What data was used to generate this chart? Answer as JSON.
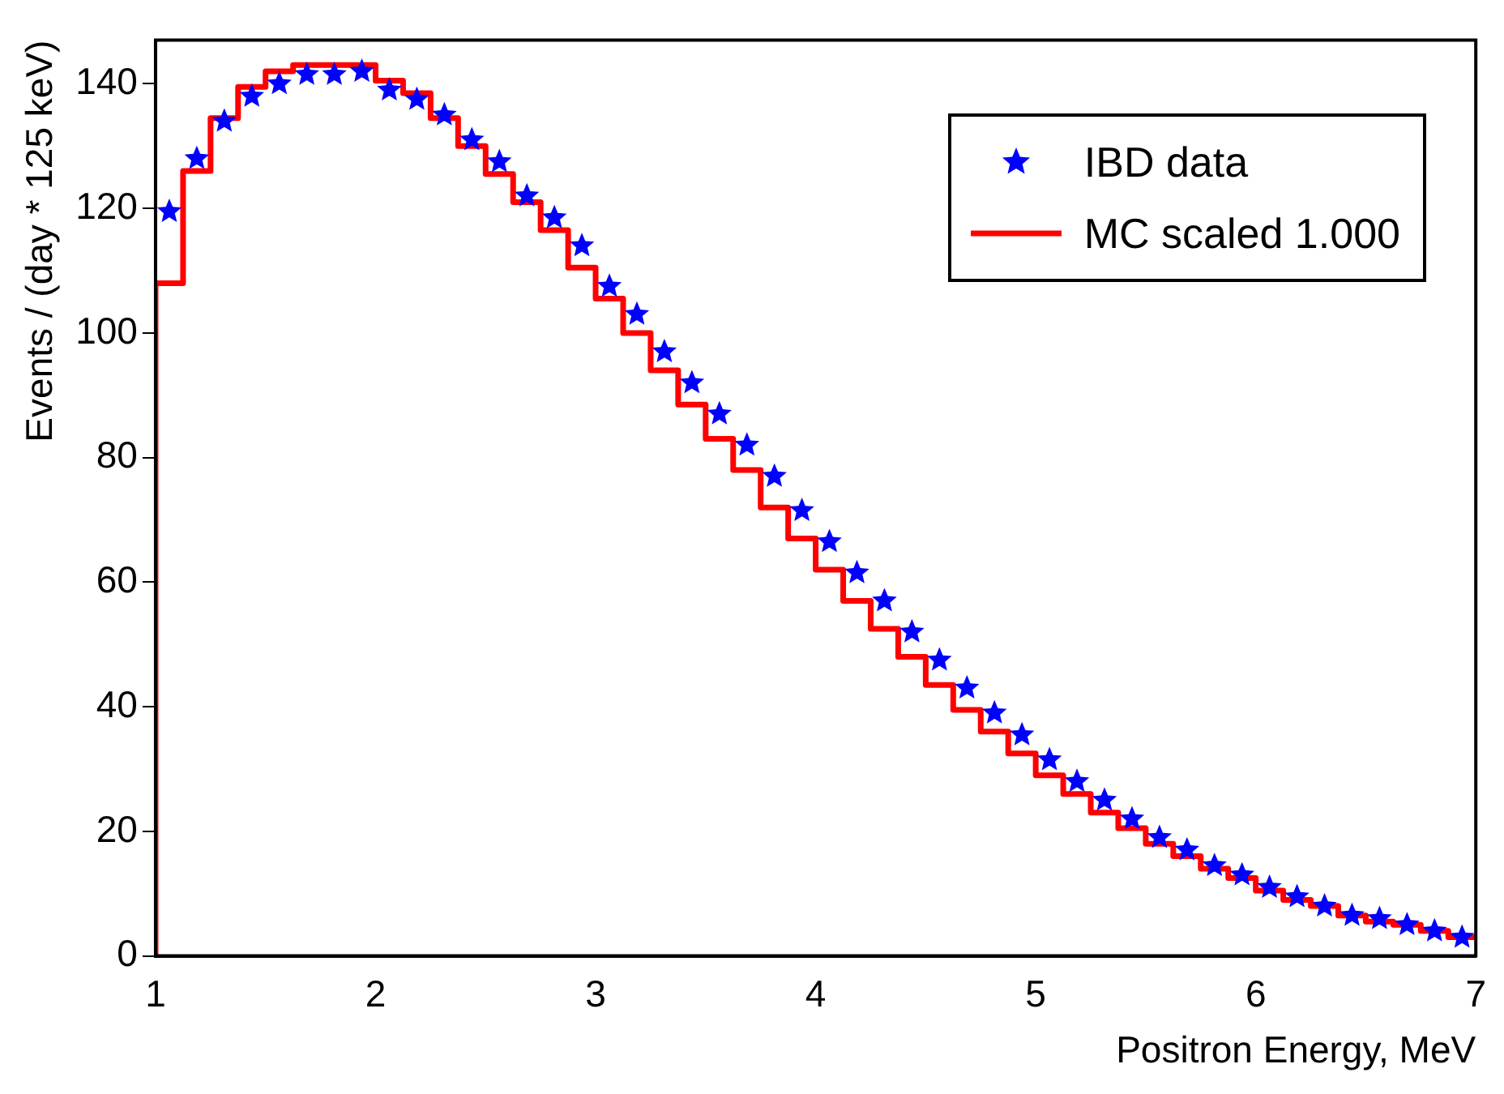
{
  "chart_data": {
    "type": "histogram",
    "xlabel": "Positron Energy, MeV",
    "ylabel": "Events / (day * 125 keV)",
    "bins": [
      1,
      1.125,
      1.25,
      1.375,
      1.5,
      1.625,
      1.75,
      1.875,
      2,
      2.125,
      2.25,
      2.375,
      2.5,
      2.625,
      2.75,
      2.875,
      3,
      3.125,
      3.25,
      3.375,
      3.5,
      3.625,
      3.75,
      3.875,
      4,
      4.125,
      4.25,
      4.375,
      4.5,
      4.625,
      4.75,
      4.875,
      5,
      5.125,
      5.25,
      5.375,
      5.5,
      5.625,
      5.75,
      5.875,
      6,
      6.125,
      6.25,
      6.375,
      6.5,
      6.625,
      6.75,
      6.875,
      7
    ],
    "series": [
      {
        "name": "IBD data",
        "type": "scatter",
        "color": "#0000ff",
        "marker": "star",
        "x": [
          1.0625,
          1.1875,
          1.3125,
          1.4375,
          1.5625,
          1.6875,
          1.8125,
          1.9375,
          2.0625,
          2.1875,
          2.3125,
          2.4375,
          2.5625,
          2.6875,
          2.8125,
          2.9375,
          3.0625,
          3.1875,
          3.3125,
          3.4375,
          3.5625,
          3.6875,
          3.8125,
          3.9375,
          4.0625,
          4.1875,
          4.3125,
          4.4375,
          4.5625,
          4.6875,
          4.8125,
          4.9375,
          5.0625,
          5.1875,
          5.3125,
          5.4375,
          5.5625,
          5.6875,
          5.8125,
          5.9375,
          6.0625,
          6.1875,
          6.3125,
          6.4375,
          6.5625,
          6.6875,
          6.8125,
          6.9375
        ],
        "values": [
          119.5,
          128,
          134,
          138,
          140,
          141.5,
          141.5,
          142,
          139,
          137.5,
          135,
          131,
          127.5,
          122,
          118.5,
          114,
          107.5,
          103,
          97,
          92,
          87,
          82,
          77,
          71.5,
          66.5,
          61.5,
          57,
          52,
          47.5,
          43,
          39,
          35.5,
          31.5,
          28,
          25,
          22,
          19,
          17,
          14.5,
          13,
          11,
          9.5,
          8,
          6.5,
          6,
          5,
          4,
          3
        ]
      },
      {
        "name": "MC scaled 1.000",
        "type": "histogram",
        "color": "#ff0000",
        "values": [
          108,
          126,
          134.5,
          139.5,
          142,
          143,
          143,
          143,
          140.5,
          138.5,
          134.5,
          130,
          125.5,
          121,
          116.5,
          110.5,
          105.5,
          100,
          94,
          88.5,
          83,
          78,
          72,
          67,
          62,
          57,
          52.5,
          48,
          43.5,
          39.5,
          36,
          32.5,
          29,
          26,
          23,
          20.5,
          18,
          16,
          14,
          12.5,
          10.5,
          9,
          8,
          6.5,
          5.5,
          5,
          4,
          3
        ]
      }
    ],
    "xlim": [
      1,
      7
    ],
    "xticks": [
      1,
      2,
      3,
      4,
      5,
      6,
      7
    ],
    "ylim": [
      0,
      147
    ],
    "yticks": [
      0,
      20,
      40,
      60,
      80,
      100,
      120,
      140
    ],
    "legend": "top right",
    "grid": false
  }
}
